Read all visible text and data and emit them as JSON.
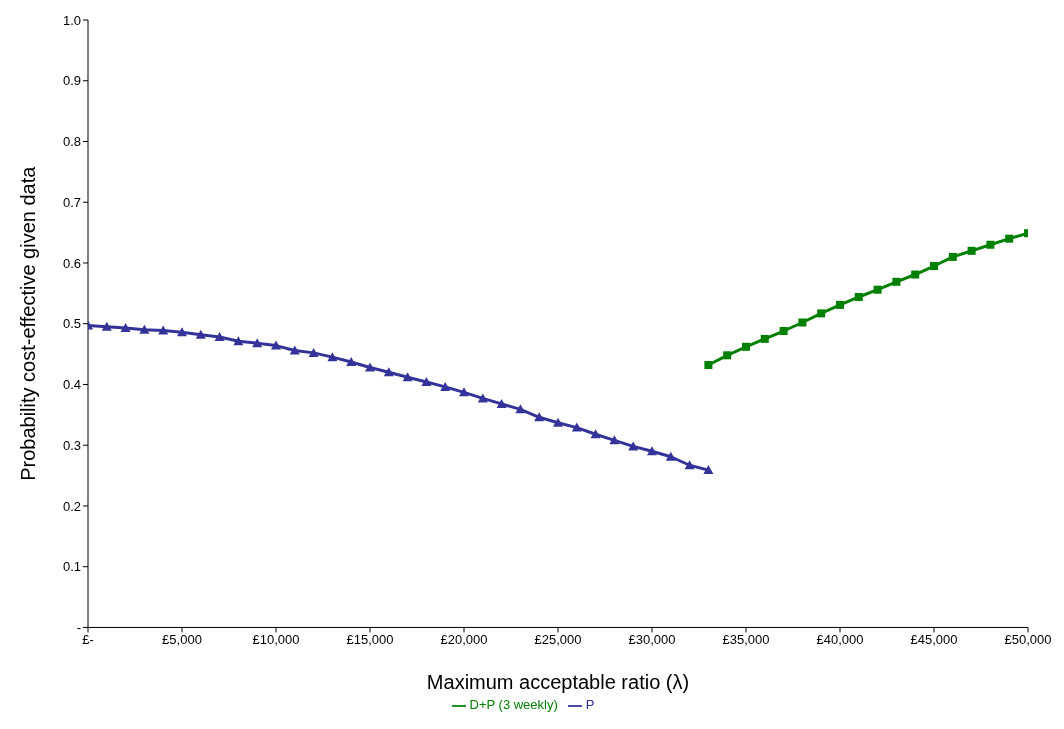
{
  "chart_data": {
    "type": "line",
    "xlabel": "Maximum acceptable ratio (λ)",
    "ylabel": "Probability cost-effective given data",
    "xlim": [
      0,
      50000
    ],
    "xticks": [
      {
        "value": 0,
        "label": "£-"
      },
      {
        "value": 5000,
        "label": "£5,000"
      },
      {
        "value": 10000,
        "label": "£10,000"
      },
      {
        "value": 15000,
        "label": "£15,000"
      },
      {
        "value": 20000,
        "label": "£20,000"
      },
      {
        "value": 25000,
        "label": "£25,000"
      },
      {
        "value": 30000,
        "label": "£30,000"
      },
      {
        "value": 35000,
        "label": "£35,000"
      },
      {
        "value": 40000,
        "label": "£40,000"
      },
      {
        "value": 45000,
        "label": "£45,000"
      },
      {
        "value": 50000,
        "label": "£50,000"
      }
    ],
    "ylim": [
      0,
      1
    ],
    "yticks": [
      {
        "value": 0,
        "label": "-"
      },
      0.1,
      0.2,
      0.3,
      0.4,
      0.5,
      0.6,
      0.7,
      0.8,
      0.9,
      {
        "value": 1,
        "label": "1.0"
      }
    ],
    "grid": false,
    "legend": "bottom",
    "line_style": "solid",
    "series": [
      {
        "name": "D+P (3 weekly)",
        "color": "#008000",
        "marker": "square",
        "x": [
          33000,
          34000,
          35000,
          36000,
          37000,
          38000,
          39000,
          40000,
          41000,
          42000,
          43000,
          44000,
          45000,
          46000,
          47000,
          48000,
          49000,
          50000
        ],
        "values": [
          0.432,
          0.448,
          0.462,
          0.475,
          0.488,
          0.502,
          0.517,
          0.531,
          0.544,
          0.556,
          0.569,
          0.581,
          0.595,
          0.61,
          0.62,
          0.63,
          0.64,
          0.649
        ]
      },
      {
        "name": "P",
        "color": "#333399",
        "marker": "triangle",
        "x": [
          0,
          1000,
          2000,
          3000,
          4000,
          5000,
          6000,
          7000,
          8000,
          9000,
          10000,
          11000,
          12000,
          13000,
          14000,
          15000,
          16000,
          17000,
          18000,
          19000,
          20000,
          21000,
          22000,
          23000,
          24000,
          25000,
          26000,
          27000,
          28000,
          29000,
          30000,
          31000,
          32000,
          33000
        ],
        "values": [
          0.497,
          0.495,
          0.493,
          0.49,
          0.489,
          0.486,
          0.482,
          0.478,
          0.471,
          0.468,
          0.464,
          0.456,
          0.452,
          0.445,
          0.437,
          0.428,
          0.42,
          0.412,
          0.404,
          0.396,
          0.387,
          0.377,
          0.368,
          0.359,
          0.346,
          0.337,
          0.329,
          0.318,
          0.308,
          0.298,
          0.29,
          0.281,
          0.267,
          0.259
        ]
      }
    ]
  }
}
